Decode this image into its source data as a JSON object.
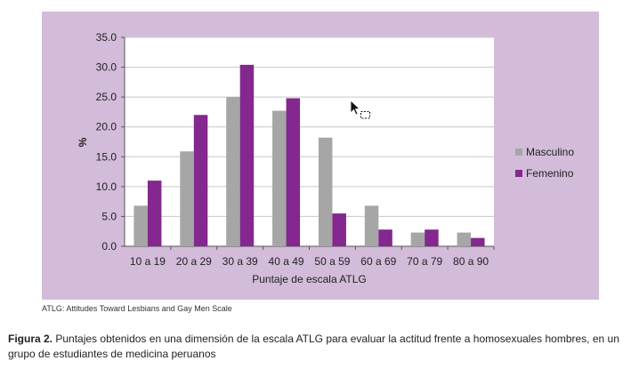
{
  "chart_data": {
    "type": "bar",
    "categories": [
      "10 a 19",
      "20 a 29",
      "30 a 39",
      "40 a 49",
      "50 a 59",
      "60 a 69",
      "70 a 79",
      "80 a 90"
    ],
    "series": [
      {
        "name": "Masculino",
        "color": "#a6a6a6",
        "values": [
          6.8,
          15.9,
          25.0,
          22.7,
          18.2,
          6.8,
          2.3,
          2.3
        ]
      },
      {
        "name": "Femenino",
        "color": "#84278f",
        "values": [
          11.0,
          22.0,
          30.4,
          24.8,
          5.5,
          2.8,
          2.8,
          1.4
        ]
      }
    ],
    "xlabel": "Puntaje de escala ATLG",
    "ylabel": "%",
    "ylim": [
      0,
      35
    ],
    "yticks": [
      "0.0",
      "5.0",
      "10.0",
      "15.0",
      "20.0",
      "25.0",
      "30.0",
      "35.0"
    ],
    "grid": true,
    "legend_position": "right"
  },
  "note": "ATLG: Attitudes Toward Lesbians and Gay Men Scale",
  "caption": {
    "label": "Figura 2.",
    "text": "Puntajes obtenidos en una dimensión de la escala ATLG para evaluar la actitud frente a homosexuales hombres, en un grupo de estudiantes de medicina peruanos"
  },
  "colors": {
    "panel_background": "#d2bcd9",
    "plot_background": "#ffffff"
  },
  "icons": {
    "cursor": "mouse-pointer-icon"
  }
}
